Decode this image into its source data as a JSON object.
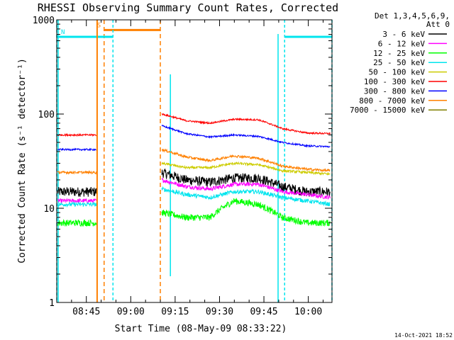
{
  "chart_data": {
    "type": "line",
    "title": "RHESSI Observing Summary Count Rates, Corrected",
    "xlabel": "Start Time (08-May-09 08:33:22)",
    "ylabel": "Corrected Count Rate (s⁻¹ detector⁻¹)",
    "xlim": [
      "08:35",
      "10:08"
    ],
    "ylim": [
      1,
      1000
    ],
    "yscale": "log",
    "x_ticks": [
      "08:45",
      "09:00",
      "09:15",
      "09:30",
      "09:45",
      "10:00"
    ],
    "y_ticks": [
      "1",
      "10",
      "100",
      "1000"
    ],
    "legend_header": [
      "Det 1,3,4,5,6,9,",
      "Att 0"
    ],
    "legend_position": "right",
    "timestamp": "14-Oct-2021 18:52",
    "data_gaps": [
      [
        "08:52",
        "09:11"
      ]
    ],
    "markers": [
      {
        "label": "S",
        "type": "SAA",
        "start": "08:51",
        "end": "09:10",
        "level": 780,
        "color": "#ff8000"
      },
      {
        "label": "N",
        "type": "Night",
        "start": "08:35",
        "end": "08:54",
        "level": 660,
        "color": "#00e5ee"
      },
      {
        "label": "",
        "type": "Night",
        "start": "09:52",
        "end": "10:08",
        "level": 660,
        "color": "#00e5ee"
      }
    ],
    "series": [
      {
        "name": "3 - 6 keV",
        "color": "#000000",
        "before": 15,
        "after": [
          24,
          20,
          19,
          21,
          21,
          17,
          15,
          15
        ],
        "noise": 0.12
      },
      {
        "name": "6 - 12 keV",
        "color": "#ff00ff",
        "before": 12,
        "after": [
          20,
          17,
          16,
          18,
          18,
          15,
          14,
          13
        ],
        "noise": 0.05
      },
      {
        "name": "12 - 25 keV",
        "color": "#00ff00",
        "before": 7,
        "after": [
          9,
          8,
          8,
          12,
          11,
          8,
          7,
          7
        ],
        "noise": 0.08
      },
      {
        "name": "25 - 50 keV",
        "color": "#00e5ee",
        "before": 11,
        "after": [
          16,
          14,
          13,
          15,
          15,
          13,
          12,
          11
        ],
        "noise": 0.05
      },
      {
        "name": "50 - 100 keV",
        "color": "#cccc00",
        "before": 0,
        "after": [
          30,
          27,
          27,
          30,
          29,
          25,
          24,
          23
        ],
        "noise": 0.03
      },
      {
        "name": "100 - 300 keV",
        "color": "#ff0000",
        "before": 60,
        "after": [
          100,
          85,
          80,
          88,
          87,
          70,
          63,
          62
        ],
        "noise": 0.02
      },
      {
        "name": "300 - 800 keV",
        "color": "#0000ff",
        "before": 42,
        "after": [
          75,
          62,
          57,
          60,
          58,
          50,
          46,
          45
        ],
        "noise": 0.02
      },
      {
        "name": "800 - 7000 keV",
        "color": "#ff8000",
        "before": 24,
        "after": [
          42,
          35,
          32,
          36,
          34,
          28,
          26,
          25
        ],
        "noise": 0.03
      },
      {
        "name": "7000 - 15000 keV",
        "color": "#808000",
        "before": 0,
        "after": [],
        "noise": 0
      }
    ]
  }
}
